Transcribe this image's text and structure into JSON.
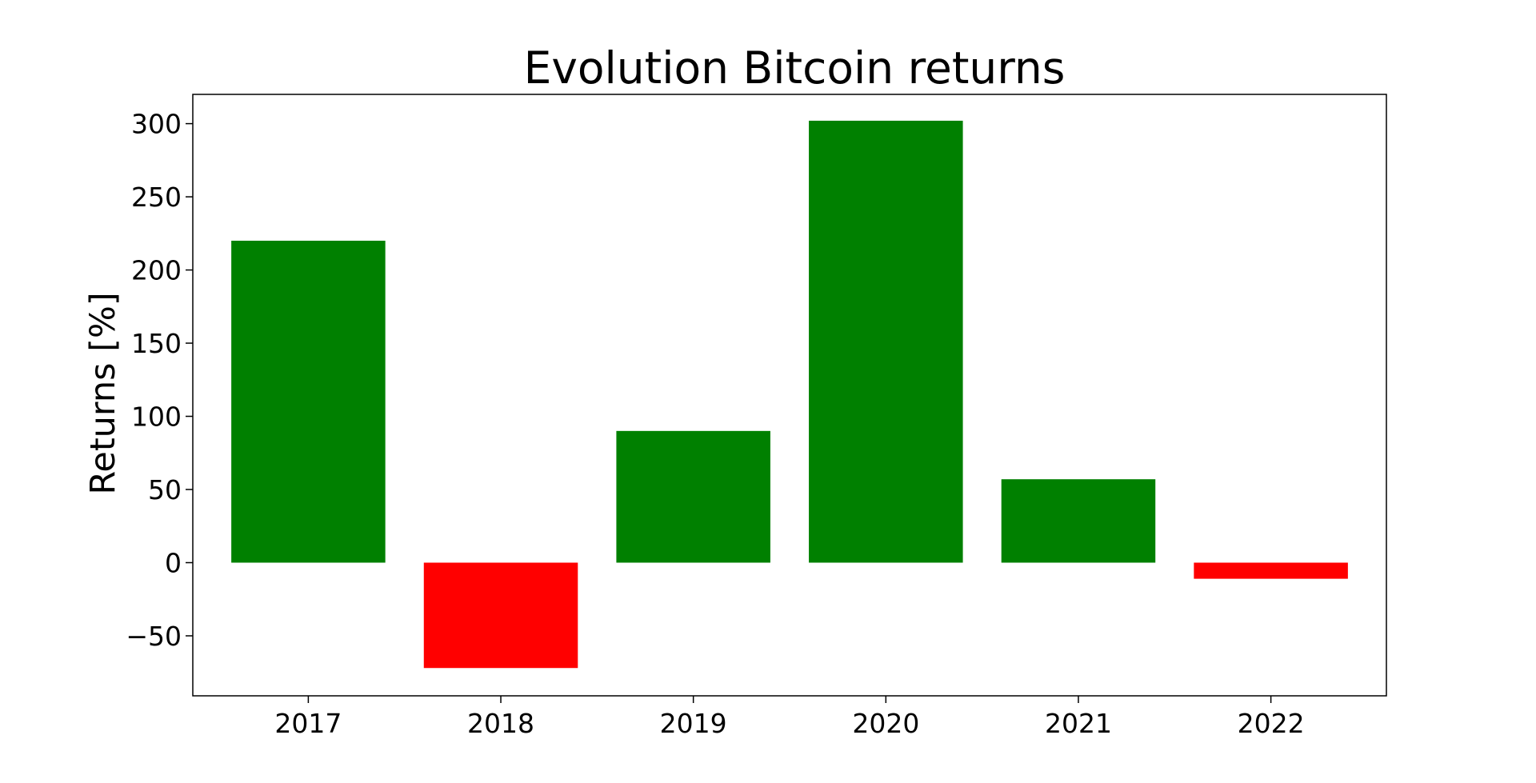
{
  "chart_data": {
    "type": "bar",
    "title": "Evolution Bitcoin returns",
    "xlabel": "",
    "ylabel": "Returns [%]",
    "categories": [
      "2017",
      "2018",
      "2019",
      "2020",
      "2021",
      "2022"
    ],
    "values": [
      220,
      -72,
      90,
      302,
      57,
      -11
    ],
    "ylim": [
      -91,
      320
    ],
    "yticks": [
      -50,
      0,
      50,
      100,
      150,
      200,
      250,
      300
    ],
    "ytick_labels": [
      "−50",
      "0",
      "50",
      "100",
      "150",
      "200",
      "250",
      "300"
    ],
    "colors": {
      "positive": "#008000",
      "negative": "#ff0000"
    },
    "grid": false,
    "legend": "none"
  }
}
